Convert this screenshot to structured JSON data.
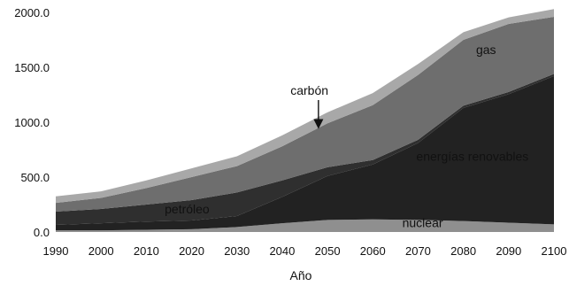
{
  "chart_data": {
    "type": "area",
    "stacked": true,
    "title": "",
    "xlabel": "Año",
    "ylabel": "",
    "x": [
      1990,
      2000,
      2010,
      2020,
      2030,
      2040,
      2050,
      2060,
      2070,
      2080,
      2090,
      2100
    ],
    "xlim": [
      1990,
      2100
    ],
    "ylim": [
      0,
      2000
    ],
    "y_ticks": [
      "0.0",
      "500.0",
      "1000.0",
      "1500.0",
      "2000.0"
    ],
    "x_ticks": [
      "1990",
      "2000",
      "2010",
      "2020",
      "2030",
      "2040",
      "2050",
      "2060",
      "2070",
      "2080",
      "2090",
      "2100"
    ],
    "grid": false,
    "legend": "none",
    "series": [
      {
        "name": "nuclear",
        "color": "#8f8f8f",
        "values": [
          15,
          15,
          20,
          25,
          45,
          80,
          110,
          115,
          110,
          100,
          85,
          70
        ]
      },
      {
        "name": "energías renovables",
        "color": "#222222",
        "values": [
          50,
          65,
          75,
          80,
          100,
          240,
          400,
          500,
          700,
          1030,
          1170,
          1350
        ]
      },
      {
        "name": "petróleo",
        "color": "#2f2f2f",
        "values": [
          120,
          130,
          155,
          185,
          215,
          150,
          80,
          40,
          30,
          20,
          20,
          20
        ]
      },
      {
        "name": "gas",
        "color": "#6e6e6e",
        "values": [
          80,
          100,
          150,
          210,
          240,
          310,
          400,
          500,
          590,
          600,
          620,
          520
        ]
      },
      {
        "name": "carbón",
        "color": "#a8a8a8",
        "values": [
          60,
          60,
          70,
          80,
          90,
          100,
          100,
          110,
          100,
          70,
          60,
          70
        ]
      }
    ],
    "annotations": [
      {
        "text": "gas",
        "x": 2085,
        "y": 1620
      },
      {
        "text": "carbón",
        "x": 2046,
        "y": 1250
      },
      {
        "text": "energías renovables",
        "x": 2082,
        "y": 650
      },
      {
        "text": "petróleo",
        "x": 2019,
        "y": 170
      },
      {
        "text": "nuclear",
        "x": 2071,
        "y": 45
      }
    ]
  }
}
